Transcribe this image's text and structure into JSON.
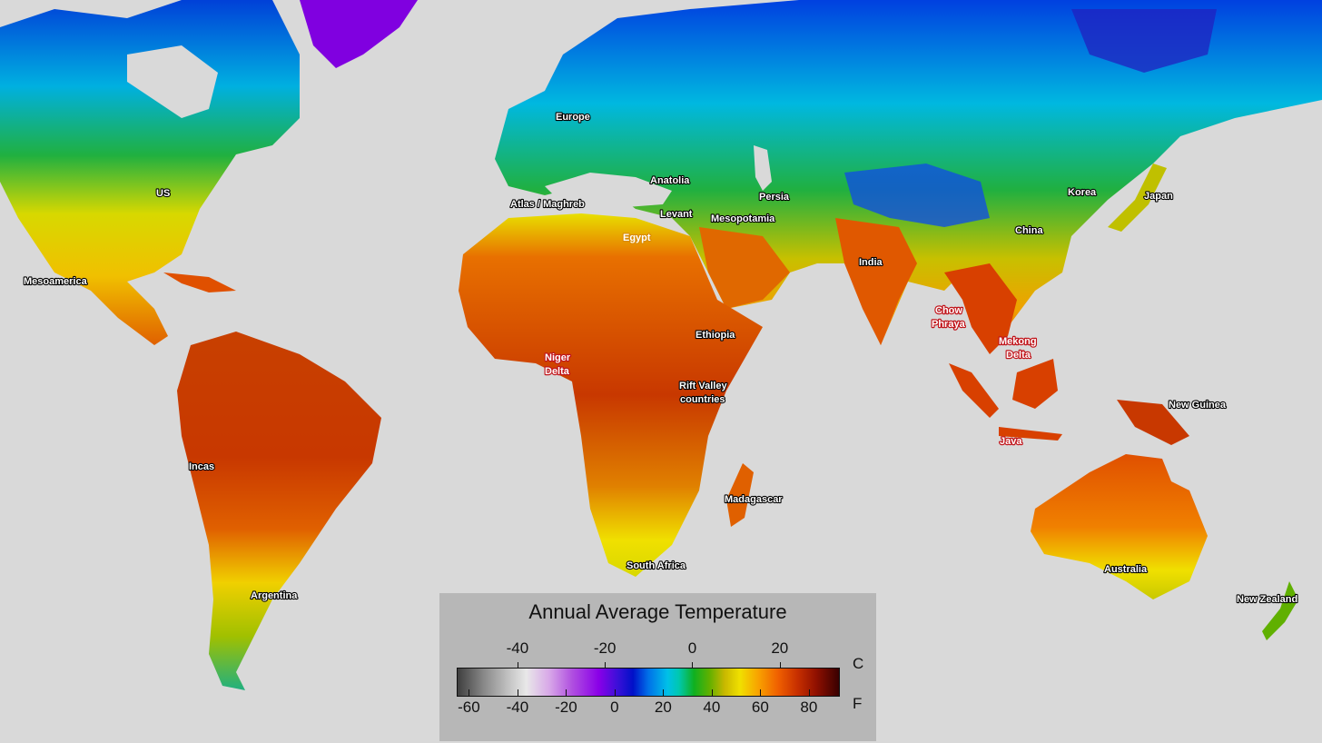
{
  "labels": {
    "europe": "Europe",
    "us": "US",
    "mesoamerica": "Mesoamerica",
    "anatolia": "Anatolia",
    "atlas_maghreb": "Atlas / Maghreb",
    "levant": "Levant",
    "mesopotamia": "Mesopotamia",
    "persia": "Persia",
    "egypt": "Egypt",
    "korea": "Korea",
    "japan": "Japan",
    "china": "China",
    "india": "India",
    "chow": "Chow",
    "phraya": "Phraya",
    "mekong": "Mekong",
    "delta": "Delta",
    "niger": "Niger",
    "niger_delta": "Delta",
    "ethiopia": "Ethiopia",
    "rift_valley": "Rift Valley",
    "countries": "countries",
    "new_guinea": "New Guinea",
    "java": "Java",
    "incas": "Incas",
    "madagascar": "Madagascar",
    "south_africa": "South Africa",
    "australia": "Australia",
    "argentina": "Argentina",
    "new_zealand": "New Zealand"
  },
  "legend": {
    "title": "Annual Average Temperature",
    "celsius_unit": "C",
    "fahrenheit_unit": "F",
    "celsius_ticks": [
      "-40",
      "-20",
      "0",
      "20"
    ],
    "fahrenheit_ticks": [
      "-60",
      "-40",
      "-20",
      "0",
      "20",
      "40",
      "60",
      "80"
    ],
    "celsius_tick_values": [
      -40,
      -20,
      0,
      20
    ],
    "fahrenheit_tick_values": [
      -60,
      -40,
      -20,
      0,
      20,
      40,
      60,
      80
    ],
    "fahrenheit_range": [
      -65,
      92
    ]
  },
  "colors": {
    "ocean": "#d9d9d9",
    "legend_bg": "#b7b7b7",
    "hot": "#c83000",
    "cold": "#0010c8"
  }
}
